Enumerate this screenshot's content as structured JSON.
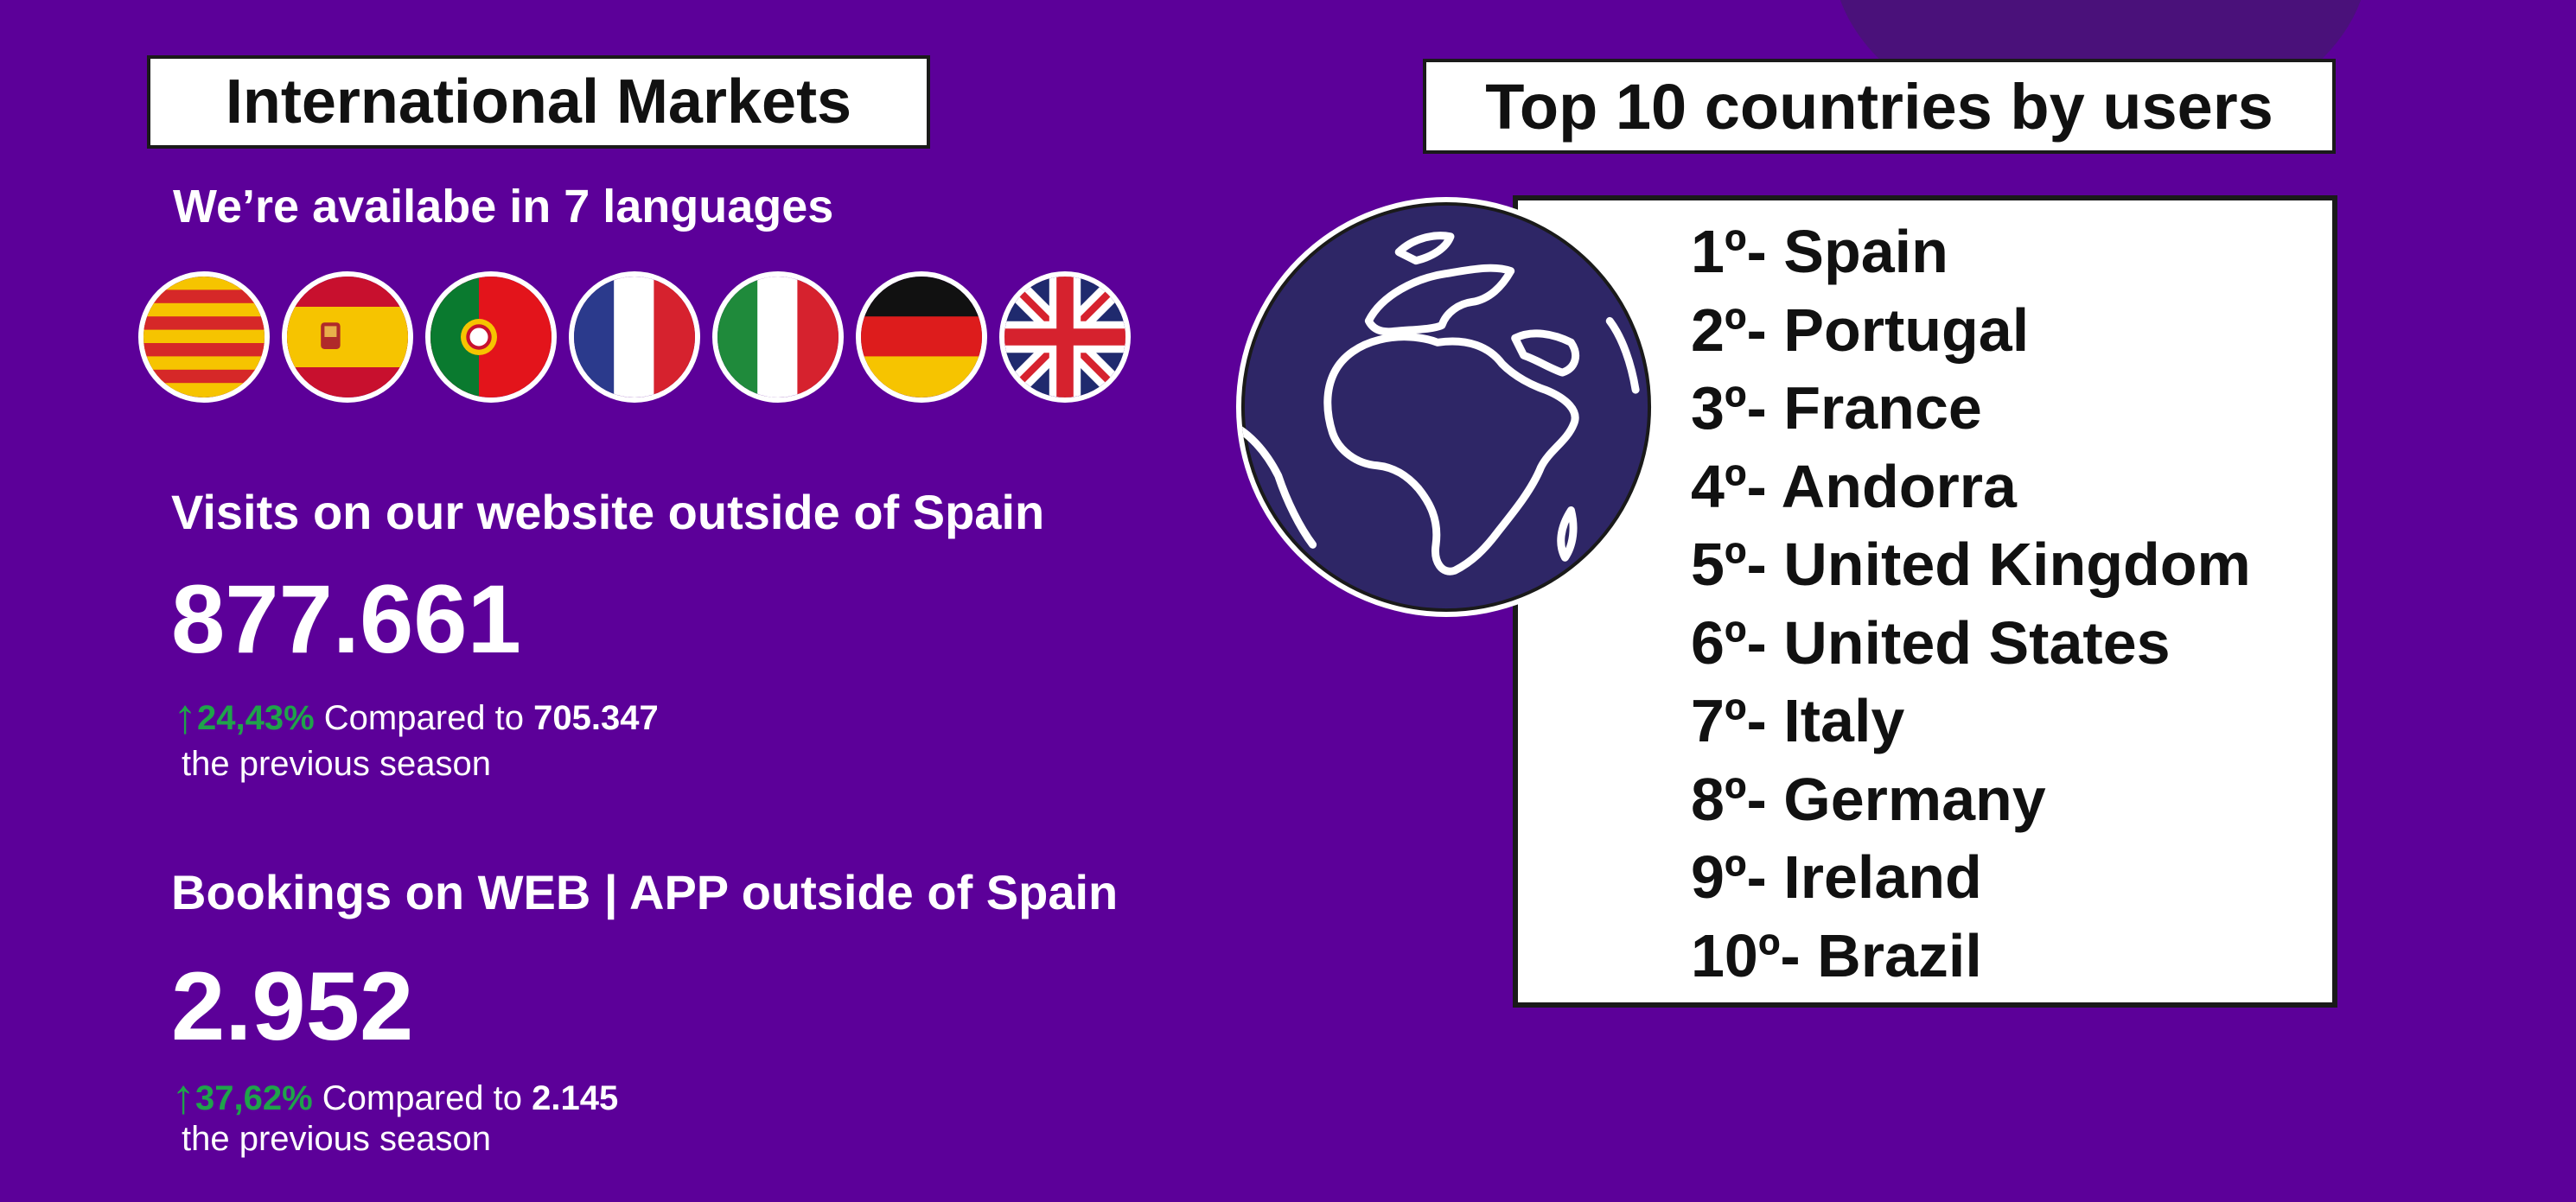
{
  "left_panel": {
    "title": "International Markets",
    "languages_text": "We’re availabe in 7 languages",
    "flags": [
      "catalan-flag",
      "spain-flag",
      "portugal-flag",
      "france-flag",
      "italy-flag",
      "germany-flag",
      "uk-flag"
    ],
    "visits": {
      "label": "Visits on our website outside of Spain",
      "value": "877.661",
      "change": "24,43%",
      "compared_text": "Compared to",
      "compared_value": "705.347",
      "period": "the previous season"
    },
    "bookings": {
      "label": "Bookings on WEB | APP outside of Spain",
      "value": "2.952",
      "change": "37,62%",
      "compared_text": "Compared to",
      "compared_value": "2.145",
      "period": "the previous season"
    }
  },
  "right_panel": {
    "title": "Top 10 countries by users",
    "countries": [
      "1º- Spain",
      "2º- Portugal",
      "3º- France",
      "4º- Andorra",
      "5º- United Kingdom",
      "6º- United States",
      "7º- Italy",
      "8º- Germany",
      "9º- Ireland",
      "10º- Brazil"
    ]
  },
  "colors": {
    "background": "#5c0099",
    "positive": "#1fa34a",
    "globe": "#2e2666"
  }
}
